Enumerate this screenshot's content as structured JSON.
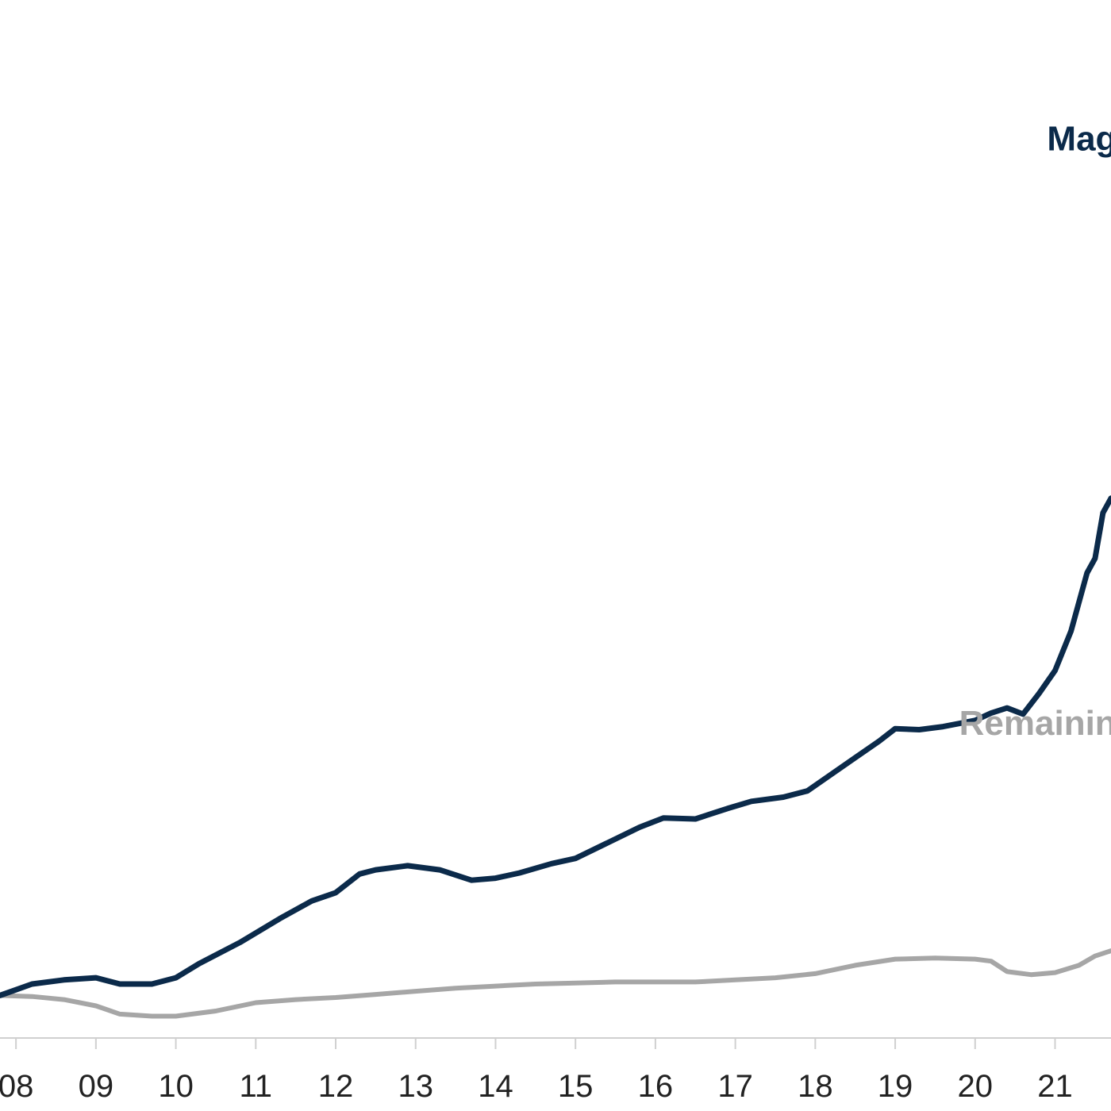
{
  "chart_data": {
    "type": "line",
    "title": "",
    "xlabel": "",
    "ylabel": "",
    "x_ticks": [
      "08",
      "09",
      "10",
      "11",
      "12",
      "13",
      "14",
      "15",
      "16",
      "17",
      "18",
      "19",
      "20",
      "21"
    ],
    "xlim": [
      7.8,
      21.7
    ],
    "ylim": [
      0,
      100
    ],
    "grid": false,
    "series": [
      {
        "name": "Mag",
        "color": "#0b2a4a",
        "label_anchor": {
          "x": 20.9,
          "y": 85.5
        },
        "points": [
          [
            7.8,
            4.1
          ],
          [
            8.2,
            5.2
          ],
          [
            8.6,
            5.6
          ],
          [
            9.0,
            5.8
          ],
          [
            9.3,
            5.2
          ],
          [
            9.7,
            5.2
          ],
          [
            10.0,
            5.8
          ],
          [
            10.3,
            7.2
          ],
          [
            10.8,
            9.2
          ],
          [
            11.3,
            11.5
          ],
          [
            11.7,
            13.2
          ],
          [
            12.0,
            14.0
          ],
          [
            12.3,
            15.8
          ],
          [
            12.5,
            16.2
          ],
          [
            12.9,
            16.6
          ],
          [
            13.3,
            16.2
          ],
          [
            13.7,
            15.2
          ],
          [
            14.0,
            15.4
          ],
          [
            14.3,
            15.9
          ],
          [
            14.7,
            16.8
          ],
          [
            15.0,
            17.3
          ],
          [
            15.4,
            18.8
          ],
          [
            15.8,
            20.3
          ],
          [
            16.1,
            21.2
          ],
          [
            16.5,
            21.1
          ],
          [
            16.9,
            22.1
          ],
          [
            17.2,
            22.8
          ],
          [
            17.6,
            23.2
          ],
          [
            17.9,
            23.8
          ],
          [
            18.2,
            25.4
          ],
          [
            18.5,
            27.0
          ],
          [
            18.8,
            28.6
          ],
          [
            19.0,
            29.8
          ],
          [
            19.3,
            29.7
          ],
          [
            19.6,
            30.0
          ],
          [
            20.0,
            30.6
          ],
          [
            20.2,
            31.3
          ],
          [
            20.4,
            31.8
          ],
          [
            20.6,
            31.2
          ],
          [
            20.8,
            33.2
          ],
          [
            21.0,
            35.4
          ],
          [
            21.2,
            39.2
          ],
          [
            21.4,
            44.8
          ],
          [
            21.5,
            46.2
          ],
          [
            21.6,
            50.6
          ],
          [
            21.7,
            52.0
          ]
        ]
      },
      {
        "name": "Remainin",
        "color": "#a6a6a6",
        "label_anchor": {
          "x": 19.8,
          "y": 29.2
        },
        "points": [
          [
            7.8,
            4.1
          ],
          [
            8.2,
            4.0
          ],
          [
            8.6,
            3.7
          ],
          [
            9.0,
            3.1
          ],
          [
            9.3,
            2.3
          ],
          [
            9.7,
            2.1
          ],
          [
            10.0,
            2.1
          ],
          [
            10.5,
            2.6
          ],
          [
            11.0,
            3.4
          ],
          [
            11.5,
            3.7
          ],
          [
            12.0,
            3.9
          ],
          [
            12.5,
            4.2
          ],
          [
            13.0,
            4.5
          ],
          [
            13.5,
            4.8
          ],
          [
            14.0,
            5.0
          ],
          [
            14.5,
            5.2
          ],
          [
            15.0,
            5.3
          ],
          [
            15.5,
            5.4
          ],
          [
            16.0,
            5.4
          ],
          [
            16.5,
            5.4
          ],
          [
            17.0,
            5.6
          ],
          [
            17.5,
            5.8
          ],
          [
            18.0,
            6.2
          ],
          [
            18.5,
            7.0
          ],
          [
            19.0,
            7.6
          ],
          [
            19.5,
            7.7
          ],
          [
            20.0,
            7.6
          ],
          [
            20.2,
            7.4
          ],
          [
            20.4,
            6.4
          ],
          [
            20.7,
            6.1
          ],
          [
            21.0,
            6.3
          ],
          [
            21.3,
            7.0
          ],
          [
            21.5,
            7.9
          ],
          [
            21.7,
            8.4
          ]
        ]
      }
    ]
  }
}
